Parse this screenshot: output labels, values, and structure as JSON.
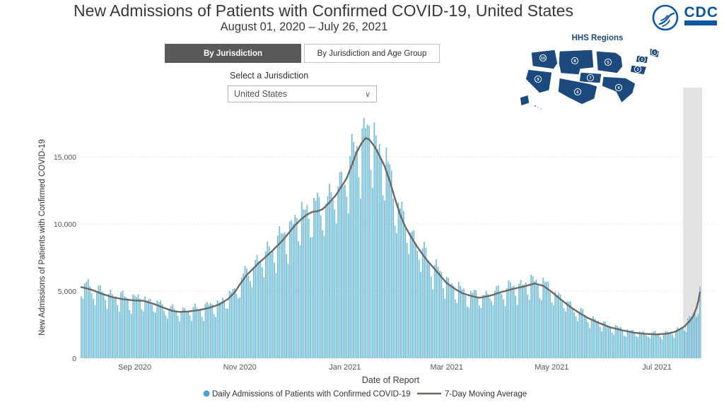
{
  "header": {
    "title": "New Admissions of Patients with Confirmed COVID-19, United States",
    "subtitle": "August 01, 2020 – July 26, 2021",
    "cdc_logo_text": "CDC"
  },
  "tabs": [
    {
      "label": "By Jurisdiction",
      "active": true
    },
    {
      "label": "By Jurisdiction and Age Group",
      "active": false
    }
  ],
  "jurisdiction_control": {
    "label": "Select a Jurisdiction",
    "selected_value": "United States"
  },
  "map": {
    "title": "HHS Regions",
    "region_numbers": [
      "1",
      "2",
      "3",
      "4",
      "5",
      "6",
      "7",
      "8",
      "9",
      "10"
    ],
    "color": "#1c4a7e"
  },
  "chart_data": {
    "type": "bar",
    "title": "New Admissions of Patients with Confirmed COVID-19, United States",
    "xlabel": "Date of Report",
    "ylabel": "New Admissions of Patients with Confirmed COVID-19",
    "x_ticks": [
      "Sep 2020",
      "Nov 2020",
      "Jan 2021",
      "Mar 2021",
      "May 2021",
      "Jul 2021"
    ],
    "x_tick_days": [
      31,
      92,
      153,
      212,
      273,
      334
    ],
    "y_ticks": [
      "0",
      "5,000",
      "10,000",
      "15,000"
    ],
    "y_tick_values": [
      0,
      5000,
      10000,
      15000
    ],
    "ylim": [
      0,
      18500
    ],
    "start_date_label": "August 01, 2020",
    "end_date_label": "July 26, 2021",
    "num_days": 360,
    "grid": "dotted-horizontal",
    "legend_position": "bottom-center",
    "series": [
      {
        "name": "Daily Admissions of Patients with Confirmed COVID-19",
        "type": "bar",
        "color": "#70bcd9",
        "note": "daily bars oscillate weekly around the 7-day moving average; weekend values dip below it",
        "weekly_factors": [
          1.07,
          1.09,
          1.08,
          1.05,
          1.0,
          0.87,
          0.8
        ],
        "wiggle": {
          "a1": 0.04,
          "f1": 1.93,
          "a2": 0.025,
          "f2": 0.61
        },
        "max_value": 17900
      },
      {
        "name": "7-Day Moving Average",
        "type": "line",
        "color": "#6e6862",
        "points": [
          [
            0,
            5300
          ],
          [
            6,
            5100
          ],
          [
            12,
            4800
          ],
          [
            18,
            4550
          ],
          [
            24,
            4400
          ],
          [
            31,
            4300
          ],
          [
            36,
            4280
          ],
          [
            42,
            4050
          ],
          [
            48,
            3750
          ],
          [
            53,
            3520
          ],
          [
            57,
            3450
          ],
          [
            62,
            3480
          ],
          [
            68,
            3580
          ],
          [
            74,
            3750
          ],
          [
            80,
            4000
          ],
          [
            85,
            4400
          ],
          [
            89,
            4900
          ],
          [
            92,
            5500
          ],
          [
            96,
            6200
          ],
          [
            103,
            7100
          ],
          [
            110,
            7900
          ],
          [
            117,
            8800
          ],
          [
            124,
            9900
          ],
          [
            128,
            10400
          ],
          [
            131,
            10700
          ],
          [
            134,
            10900
          ],
          [
            137,
            10950
          ],
          [
            140,
            11100
          ],
          [
            144,
            11600
          ],
          [
            148,
            12200
          ],
          [
            151,
            12800
          ],
          [
            154,
            13400
          ],
          [
            157,
            14400
          ],
          [
            160,
            15400
          ],
          [
            163,
            16100
          ],
          [
            165,
            16400
          ],
          [
            167,
            16300
          ],
          [
            170,
            15800
          ],
          [
            173,
            15100
          ],
          [
            176,
            14300
          ],
          [
            179,
            13200
          ],
          [
            182,
            11900
          ],
          [
            185,
            10700
          ],
          [
            188,
            9800
          ],
          [
            192,
            8900
          ],
          [
            196,
            8100
          ],
          [
            200,
            7400
          ],
          [
            204,
            6800
          ],
          [
            208,
            6200
          ],
          [
            212,
            5600
          ],
          [
            217,
            5150
          ],
          [
            221,
            4850
          ],
          [
            226,
            4650
          ],
          [
            231,
            4500
          ],
          [
            237,
            4650
          ],
          [
            243,
            4900
          ],
          [
            250,
            5150
          ],
          [
            257,
            5350
          ],
          [
            263,
            5570
          ],
          [
            268,
            5400
          ],
          [
            273,
            4940
          ],
          [
            278,
            4400
          ],
          [
            283,
            3900
          ],
          [
            288,
            3450
          ],
          [
            294,
            3000
          ],
          [
            300,
            2650
          ],
          [
            307,
            2300
          ],
          [
            314,
            2080
          ],
          [
            321,
            1900
          ],
          [
            328,
            1810
          ],
          [
            334,
            1780
          ],
          [
            340,
            1830
          ],
          [
            345,
            1990
          ],
          [
            350,
            2370
          ],
          [
            353,
            2760
          ],
          [
            355,
            3120
          ],
          [
            357,
            3750
          ],
          [
            358,
            4250
          ],
          [
            359,
            4900
          ]
        ]
      }
    ],
    "highlight_band": {
      "start_day": 350,
      "end_day": 360,
      "color": "#e3e3e3"
    }
  },
  "legend": [
    {
      "label": "Daily Admissions of Patients with Confirmed COVID-19",
      "marker": "dot",
      "color": "#45a6d1"
    },
    {
      "label": "7-Day Moving Average",
      "marker": "line",
      "color": "#6e6862"
    }
  ]
}
